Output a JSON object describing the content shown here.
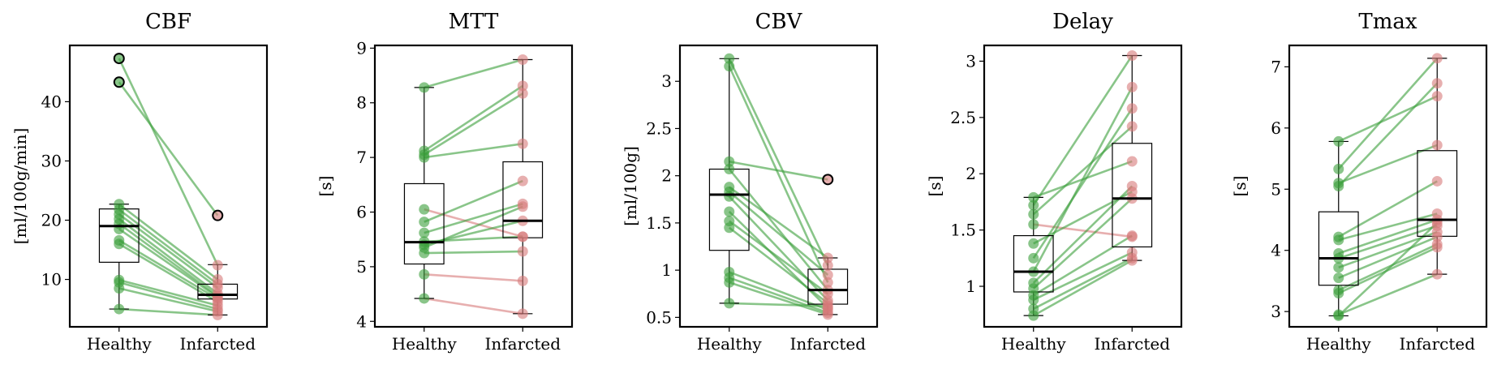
{
  "chart_data": [
    {
      "type": "box+paired-scatter",
      "title": "CBF",
      "ylabel": "[ml/100g/min]",
      "categories": [
        "Healthy",
        "Infarcted"
      ],
      "ylim": [
        2,
        49.5
      ],
      "yticks": [
        10,
        20,
        30,
        40
      ],
      "box": [
        {
          "q1": 12.9,
          "median": 19.0,
          "q3": 21.9,
          "whisker_low": 5.0,
          "whisker_high": 22.7
        },
        {
          "q1": 6.7,
          "median": 7.4,
          "q3": 9.2,
          "whisker_low": 4.0,
          "whisker_high": 12.5
        }
      ],
      "outliers": [
        [
          47.3,
          43.3
        ],
        [
          20.8
        ]
      ],
      "pairs": [
        [
          47.3,
          12.4
        ],
        [
          43.3,
          20.8
        ],
        [
          22.7,
          10.0
        ],
        [
          21.8,
          9.2
        ],
        [
          21.0,
          8.6
        ],
        [
          20.2,
          7.6
        ],
        [
          19.4,
          7.2
        ],
        [
          18.5,
          7.0
        ],
        [
          16.6,
          6.7
        ],
        [
          16.0,
          6.2
        ],
        [
          9.9,
          5.6
        ],
        [
          9.5,
          5.0
        ],
        [
          8.5,
          4.6
        ],
        [
          5.0,
          4.0
        ]
      ],
      "colors": {
        "increase": "#d77a7a",
        "decrease": "#3a9e3a"
      }
    },
    {
      "type": "box+paired-scatter",
      "title": "MTT",
      "ylabel": "[s]",
      "categories": [
        "Healthy",
        "Infarcted"
      ],
      "ylim": [
        3.9,
        9.05
      ],
      "yticks": [
        4,
        5,
        6,
        7,
        8,
        9
      ],
      "box": [
        {
          "q1": 5.05,
          "median": 5.45,
          "q3": 6.52,
          "whisker_low": 4.42,
          "whisker_high": 8.28
        },
        {
          "q1": 5.53,
          "median": 5.84,
          "q3": 6.92,
          "whisker_low": 4.14,
          "whisker_high": 8.79
        }
      ],
      "outliers": [
        [],
        []
      ],
      "pairs": [
        [
          8.28,
          8.79
        ],
        [
          7.12,
          8.31
        ],
        [
          7.05,
          8.17
        ],
        [
          7.0,
          7.25
        ],
        [
          6.05,
          5.55
        ],
        [
          5.82,
          6.57
        ],
        [
          5.62,
          6.15
        ],
        [
          5.46,
          5.55
        ],
        [
          5.4,
          5.84
        ],
        [
          5.35,
          6.1
        ],
        [
          5.25,
          5.28
        ],
        [
          4.86,
          4.74
        ],
        [
          4.42,
          4.14
        ]
      ],
      "colors": {
        "increase": "#3a9e3a",
        "decrease": "#d77a7a"
      }
    },
    {
      "type": "box+paired-scatter",
      "title": "CBV",
      "ylabel": "[ml/100g]",
      "categories": [
        "Healthy",
        "Infarcted"
      ],
      "ylim": [
        0.4,
        3.38
      ],
      "yticks": [
        0.5,
        1.0,
        1.5,
        2.0,
        2.5,
        3.0
      ],
      "box": [
        {
          "q1": 1.21,
          "median": 1.8,
          "q3": 2.07,
          "whisker_low": 0.65,
          "whisker_high": 3.24
        },
        {
          "q1": 0.64,
          "median": 0.79,
          "q3": 1.01,
          "whisker_low": 0.53,
          "whisker_high": 1.13
        }
      ],
      "outliers": [
        [],
        [
          1.96
        ]
      ],
      "pairs": [
        [
          3.24,
          1.05
        ],
        [
          3.16,
          0.87
        ],
        [
          2.15,
          1.96
        ],
        [
          2.07,
          0.79
        ],
        [
          1.88,
          1.13
        ],
        [
          1.83,
          0.95
        ],
        [
          1.78,
          0.68
        ],
        [
          1.62,
          0.6
        ],
        [
          1.52,
          0.75
        ],
        [
          1.45,
          0.65
        ],
        [
          0.98,
          0.58
        ],
        [
          0.92,
          0.55
        ],
        [
          0.87,
          0.53
        ],
        [
          0.65,
          0.62
        ]
      ],
      "colors": {
        "increase": "#d77a7a",
        "decrease": "#3a9e3a"
      }
    },
    {
      "type": "box+paired-scatter",
      "title": "Delay",
      "ylabel": "[s]",
      "categories": [
        "Healthy",
        "Infarcted"
      ],
      "ylim": [
        0.64,
        3.14
      ],
      "yticks": [
        1.0,
        1.5,
        2.0,
        2.5,
        3.0
      ],
      "box": [
        {
          "q1": 0.95,
          "median": 1.13,
          "q3": 1.45,
          "whisker_low": 0.74,
          "whisker_high": 1.79
        },
        {
          "q1": 1.35,
          "median": 1.78,
          "q3": 2.27,
          "whisker_low": 1.23,
          "whisker_high": 3.05
        }
      ],
      "outliers": [
        [],
        []
      ],
      "pairs": [
        [
          1.79,
          2.11
        ],
        [
          1.72,
          3.05
        ],
        [
          1.64,
          2.42
        ],
        [
          1.55,
          1.44
        ],
        [
          1.38,
          1.84
        ],
        [
          1.25,
          2.58
        ],
        [
          1.13,
          2.77
        ],
        [
          1.03,
          1.89
        ],
        [
          0.98,
          1.78
        ],
        [
          0.92,
          1.45
        ],
        [
          0.88,
          1.3
        ],
        [
          0.8,
          1.25
        ],
        [
          0.74,
          1.23
        ]
      ],
      "colors": {
        "increase": "#3a9e3a",
        "decrease": "#d77a7a"
      }
    },
    {
      "type": "box+paired-scatter",
      "title": "Tmax",
      "ylabel": "[s]",
      "categories": [
        "Healthy",
        "Infarcted"
      ],
      "ylim": [
        2.75,
        7.35
      ],
      "yticks": [
        3,
        4,
        5,
        6,
        7
      ],
      "box": [
        {
          "q1": 3.43,
          "median": 3.87,
          "q3": 4.63,
          "whisker_low": 2.93,
          "whisker_high": 5.78
        },
        {
          "q1": 4.23,
          "median": 4.5,
          "q3": 5.63,
          "whisker_low": 3.61,
          "whisker_high": 7.14
        }
      ],
      "outliers": [
        [],
        []
      ],
      "pairs": [
        [
          5.78,
          6.52
        ],
        [
          5.33,
          7.14
        ],
        [
          5.1,
          5.72
        ],
        [
          5.05,
          6.73
        ],
        [
          4.22,
          5.13
        ],
        [
          4.17,
          4.6
        ],
        [
          3.95,
          4.5
        ],
        [
          3.87,
          4.4
        ],
        [
          3.72,
          4.3
        ],
        [
          3.55,
          4.22
        ],
        [
          3.35,
          4.1
        ],
        [
          3.3,
          4.05
        ],
        [
          2.95,
          3.61
        ],
        [
          2.93,
          4.45
        ]
      ],
      "colors": {
        "increase": "#3a9e3a",
        "decrease": "#d77a7a"
      }
    }
  ],
  "style": {
    "healthy_point_color": "#3a9e3a",
    "infarcted_point_color": "#d77a7a",
    "point_opacity": 0.6,
    "line_opacity": 0.6
  }
}
